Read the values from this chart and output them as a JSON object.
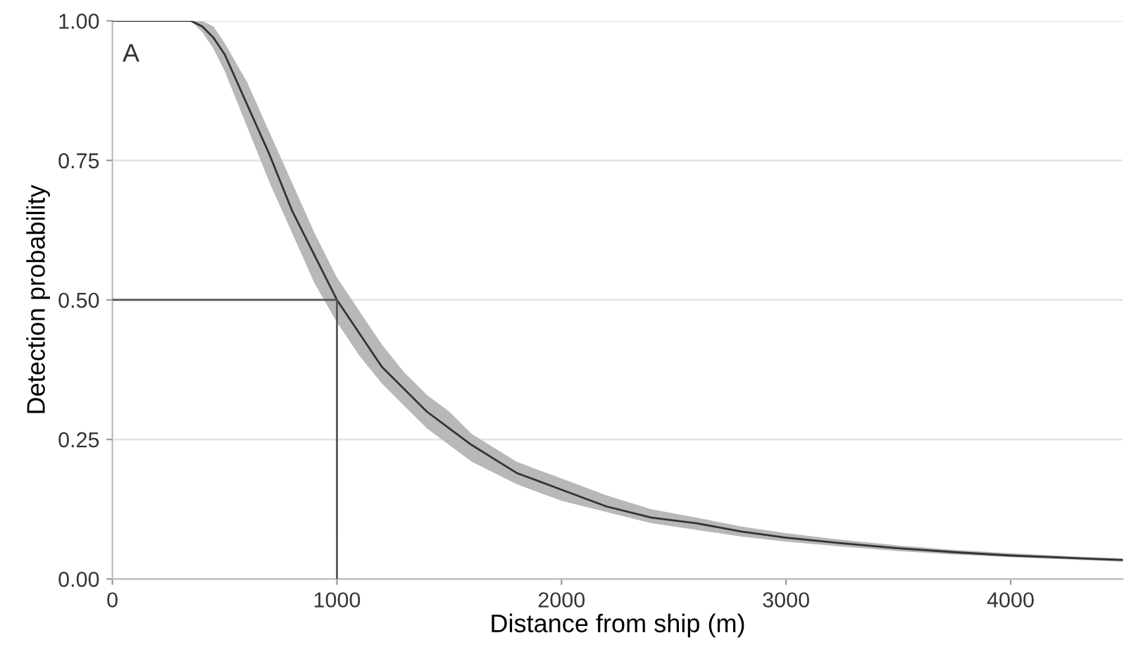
{
  "chart_data": {
    "type": "line",
    "xlabel": "Distance from ship (m)",
    "ylabel": "Detection probability",
    "annotations": [
      "A"
    ],
    "xlim": [
      0,
      4500
    ],
    "xticks": [
      0,
      1000,
      2000,
      3000,
      4000
    ],
    "ylim": [
      0,
      1
    ],
    "yticks": [
      {
        "value": 0,
        "label": "0.00"
      },
      {
        "value": 0.25,
        "label": "0.25"
      },
      {
        "value": 0.5,
        "label": "0.50"
      },
      {
        "value": 0.75,
        "label": "0.75"
      },
      {
        "value": 1,
        "label": "1.00"
      }
    ],
    "grid": "y",
    "marker": "none",
    "line_style": "solid",
    "series": [
      {
        "color": "#333333",
        "x": [
          0,
          300,
          350,
          400,
          450,
          500,
          600,
          700,
          800,
          900,
          1000,
          1100,
          1200,
          1300,
          1400,
          1500,
          1600,
          1800,
          2000,
          2200,
          2400,
          2600,
          2800,
          3000,
          3250,
          3500,
          3750,
          4000,
          4250,
          4500
        ],
        "values": [
          1,
          1,
          1,
          0.99,
          0.97,
          0.94,
          0.85,
          0.76,
          0.66,
          0.58,
          0.5,
          0.44,
          0.38,
          0.34,
          0.3,
          0.27,
          0.24,
          0.19,
          0.16,
          0.13,
          0.11,
          0.1,
          0.085,
          0.074,
          0.064,
          0.055,
          0.048,
          0.042,
          0.038,
          0.034
        ],
        "lower": [
          1,
          1,
          1,
          0.98,
          0.95,
          0.91,
          0.81,
          0.71,
          0.62,
          0.53,
          0.46,
          0.4,
          0.35,
          0.31,
          0.27,
          0.24,
          0.21,
          0.17,
          0.14,
          0.12,
          0.1,
          0.088,
          0.076,
          0.067,
          0.058,
          0.05,
          0.044,
          0.039,
          0.035,
          0.031
        ],
        "upper": [
          1,
          1,
          1,
          1,
          0.99,
          0.96,
          0.89,
          0.8,
          0.71,
          0.62,
          0.54,
          0.48,
          0.42,
          0.37,
          0.33,
          0.3,
          0.26,
          0.21,
          0.18,
          0.15,
          0.125,
          0.11,
          0.094,
          0.082,
          0.07,
          0.06,
          0.052,
          0.046,
          0.041,
          0.037
        ]
      },
      {
        "color": "#555555",
        "x": [
          0,
          1000,
          1000
        ],
        "values": [
          0.5,
          0.5,
          0
        ]
      }
    ]
  }
}
